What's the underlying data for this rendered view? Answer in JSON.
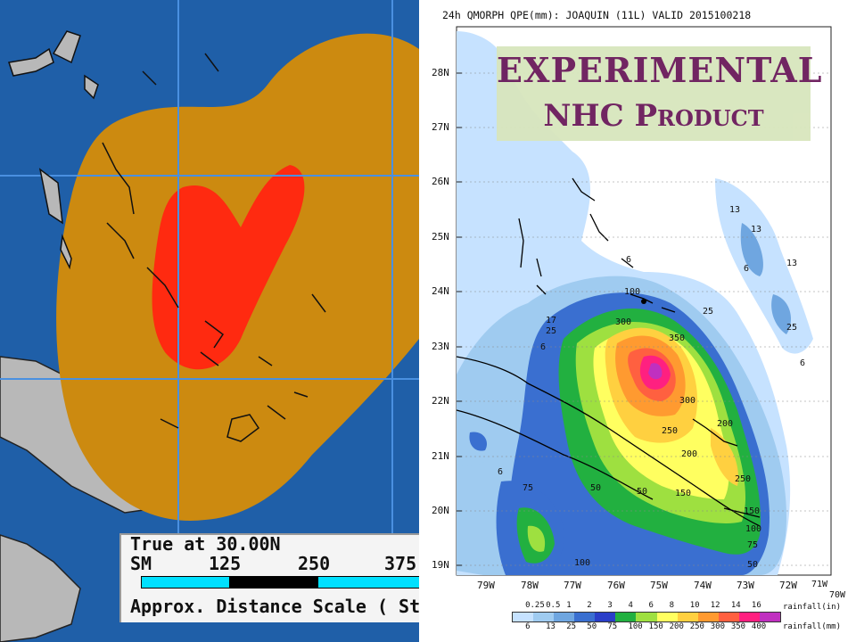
{
  "left_map": {
    "scale_line1": "True at 30.00N",
    "scale_line2_sm": "SM",
    "scale_ticks": [
      "125",
      "250",
      "375"
    ],
    "scale_line3": "Approx. Distance Scale ( Sta",
    "colors": {
      "ocean": "#1f5fa8",
      "land": "#b8b8b8",
      "wind_34kt": "#cc8a10",
      "wind_50kt": "#ff2a10"
    }
  },
  "right_map": {
    "title": "24h QMORPH QPE(mm): JOAQUIN (11L) VALID 2015100218",
    "banner_line1": "EXPERIMENTAL",
    "banner_line2": "NHC Product",
    "lat_labels": [
      "28N",
      "27N",
      "26N",
      "25N",
      "24N",
      "23N",
      "22N",
      "21N",
      "20N",
      "19N"
    ],
    "lon_labels": [
      "79W",
      "78W",
      "77W",
      "76W",
      "75W",
      "74W",
      "73W",
      "72W",
      "71W",
      "70W"
    ],
    "contour_labels": [
      "13",
      "13",
      "13",
      "6",
      "25",
      "6",
      "6",
      "100",
      "300",
      "350",
      "300",
      "250",
      "200",
      "200",
      "250",
      "150",
      "50",
      "150",
      "100",
      "75",
      "50",
      "75",
      "50",
      "100",
      "6",
      "17",
      "25",
      "6",
      "25"
    ],
    "legend_inch_values": [
      "0.25",
      "0.5",
      "1",
      "2",
      "3",
      "4",
      "6",
      "8",
      "10",
      "12",
      "14",
      "16"
    ],
    "legend_mm_values": [
      "6",
      "13",
      "25",
      "50",
      "75",
      "100",
      "150",
      "200",
      "250",
      "300",
      "350",
      "400"
    ],
    "legend_inch_unit": "rainfall(in)",
    "legend_mm_unit": "rainfall(mm)",
    "legend_colors": [
      "#c6e2ff",
      "#9fcbf0",
      "#6fa6e0",
      "#3a6fd0",
      "#2a3ec8",
      "#22b040",
      "#9ee040",
      "#ffff60",
      "#ffd040",
      "#ff9a30",
      "#ff6040",
      "#ff2080",
      "#c030c0"
    ]
  }
}
